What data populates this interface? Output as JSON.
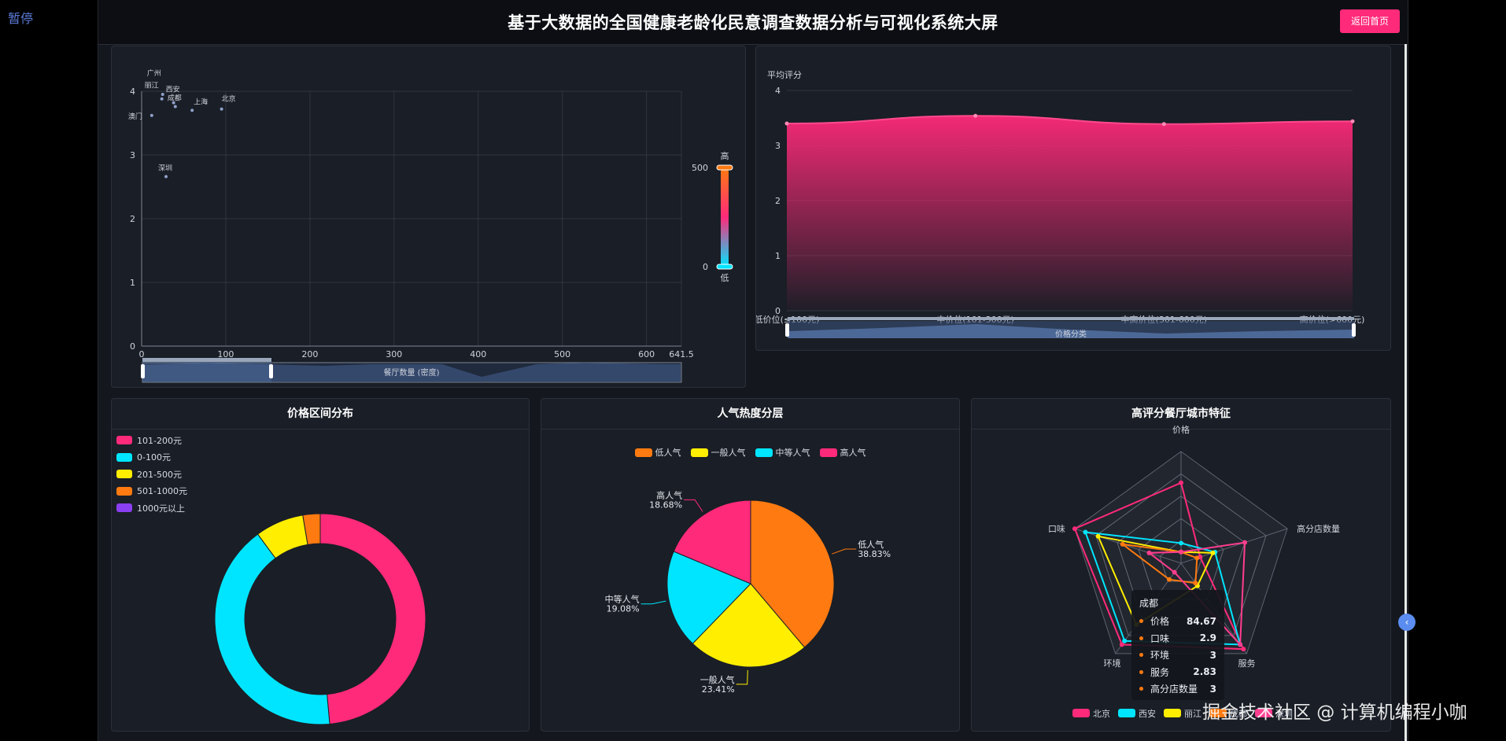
{
  "pause_label": "暂停",
  "header": {
    "title": "基于大数据的全国健康老龄化民意调查数据分析与可视化系统大屏",
    "home_button": "返回首页"
  },
  "watermark": "掘金技术社区 @ 计算机编程小咖",
  "colors": {
    "pink": "#ff2a7a",
    "cyan": "#00e5ff",
    "yellow": "#ffee00",
    "orange": "#ff7a10",
    "purple": "#8a3ff0"
  },
  "chart_data": [
    {
      "type": "scatter",
      "xlabel": "",
      "ylabel": "",
      "xlim": [
        0,
        641.5
      ],
      "ylim": [
        0,
        4
      ],
      "x_ticks": [
        "0",
        "100",
        "200",
        "300",
        "400",
        "500",
        "600",
        "641.5"
      ],
      "y_ticks": [
        "0",
        "1",
        "2",
        "3",
        "4"
      ],
      "points": [
        {
          "name": "北京",
          "x": 95,
          "y": 3.72
        },
        {
          "name": "上海",
          "x": 60,
          "y": 3.7
        },
        {
          "name": "广州",
          "x": 25,
          "y": 3.95
        },
        {
          "name": "丽江",
          "x": 24,
          "y": 3.88
        },
        {
          "name": "西安",
          "x": 38,
          "y": 3.82
        },
        {
          "name": "成都",
          "x": 40,
          "y": 3.76
        },
        {
          "name": "澳门",
          "x": 12,
          "y": 3.62
        },
        {
          "name": "深圳",
          "x": 29,
          "y": 2.66
        }
      ],
      "visual_map": {
        "max_label": "500",
        "min_label": "0",
        "high_text": "高",
        "low_text": "低"
      },
      "datazoom_label": "餐厅数量 (密度)"
    },
    {
      "type": "area",
      "ylabel": "平均评分",
      "ylim": [
        0,
        4
      ],
      "y_ticks": [
        "0",
        "1",
        "2",
        "3",
        "4"
      ],
      "categories": [
        "低价位(≤100元)",
        "中价位(101-300元)",
        "中高价位(301-600元)",
        "高价位(>600元)"
      ],
      "values": [
        3.4,
        3.54,
        3.39,
        3.44
      ],
      "datazoom_label": "价格分类"
    },
    {
      "type": "pie",
      "title": "价格区间分布",
      "legend": [
        "101-200元",
        "0-100元",
        "201-500元",
        "501-1000元",
        "1000元以上"
      ],
      "slices": [
        {
          "name": "101-200元",
          "value": 47.6,
          "color": "#ff2a7a"
        },
        {
          "name": "0-100元",
          "value": 40.5,
          "color": "#00e5ff"
        },
        {
          "name": "201-500元",
          "value": 7.3,
          "color": "#ffee00"
        },
        {
          "name": "501-1000元",
          "value": 2.6,
          "color": "#ff7a10"
        },
        {
          "name": "1000元以上",
          "value": 0,
          "color": "#8a3ff0"
        }
      ]
    },
    {
      "type": "pie",
      "title": "人气热度分层",
      "legend": [
        "低人气",
        "一般人气",
        "中等人气",
        "高人气"
      ],
      "slices": [
        {
          "name": "低人气",
          "value": 38.83,
          "label": "38.83%",
          "color": "#ff7a10"
        },
        {
          "name": "一般人气",
          "value": 23.41,
          "label": "23.41%",
          "color": "#ffee00"
        },
        {
          "name": "中等人气",
          "value": 19.08,
          "label": "19.08%",
          "color": "#00e5ff"
        },
        {
          "name": "高人气",
          "value": 18.68,
          "label": "18.68%",
          "color": "#ff2a7a"
        }
      ]
    },
    {
      "type": "radar",
      "title": "高评分餐厅城市特征",
      "indicators": [
        "价格",
        "高分店数量",
        "服务",
        "环境",
        "口味"
      ],
      "series": [
        {
          "name": "北京",
          "color": "#ff2a7a",
          "values": [
            0.72,
            0.18,
            0.95,
            0.9,
            1.0
          ]
        },
        {
          "name": "西安",
          "color": "#00e5ff",
          "values": [
            0.18,
            0.32,
            0.9,
            0.86,
            0.9
          ]
        },
        {
          "name": "丽江",
          "color": "#ffee00",
          "values": [
            0.1,
            0.3,
            0.25,
            0.68,
            0.78
          ]
        },
        {
          "name": "成都",
          "color": "#ff7a10",
          "values": [
            0.1,
            0.15,
            0.22,
            0.18,
            0.55
          ]
        },
        {
          "name": "深圳",
          "color": "#ff3d8f",
          "values": [
            0.1,
            0.6,
            0.9,
            0.1,
            0.3
          ]
        }
      ],
      "tooltip": {
        "title": "成都",
        "rows": [
          {
            "name": "价格",
            "value": "84.67"
          },
          {
            "name": "口味",
            "value": "2.9"
          },
          {
            "name": "环境",
            "value": "3"
          },
          {
            "name": "服务",
            "value": "2.83"
          },
          {
            "name": "高分店数量",
            "value": "3"
          }
        ]
      }
    }
  ]
}
